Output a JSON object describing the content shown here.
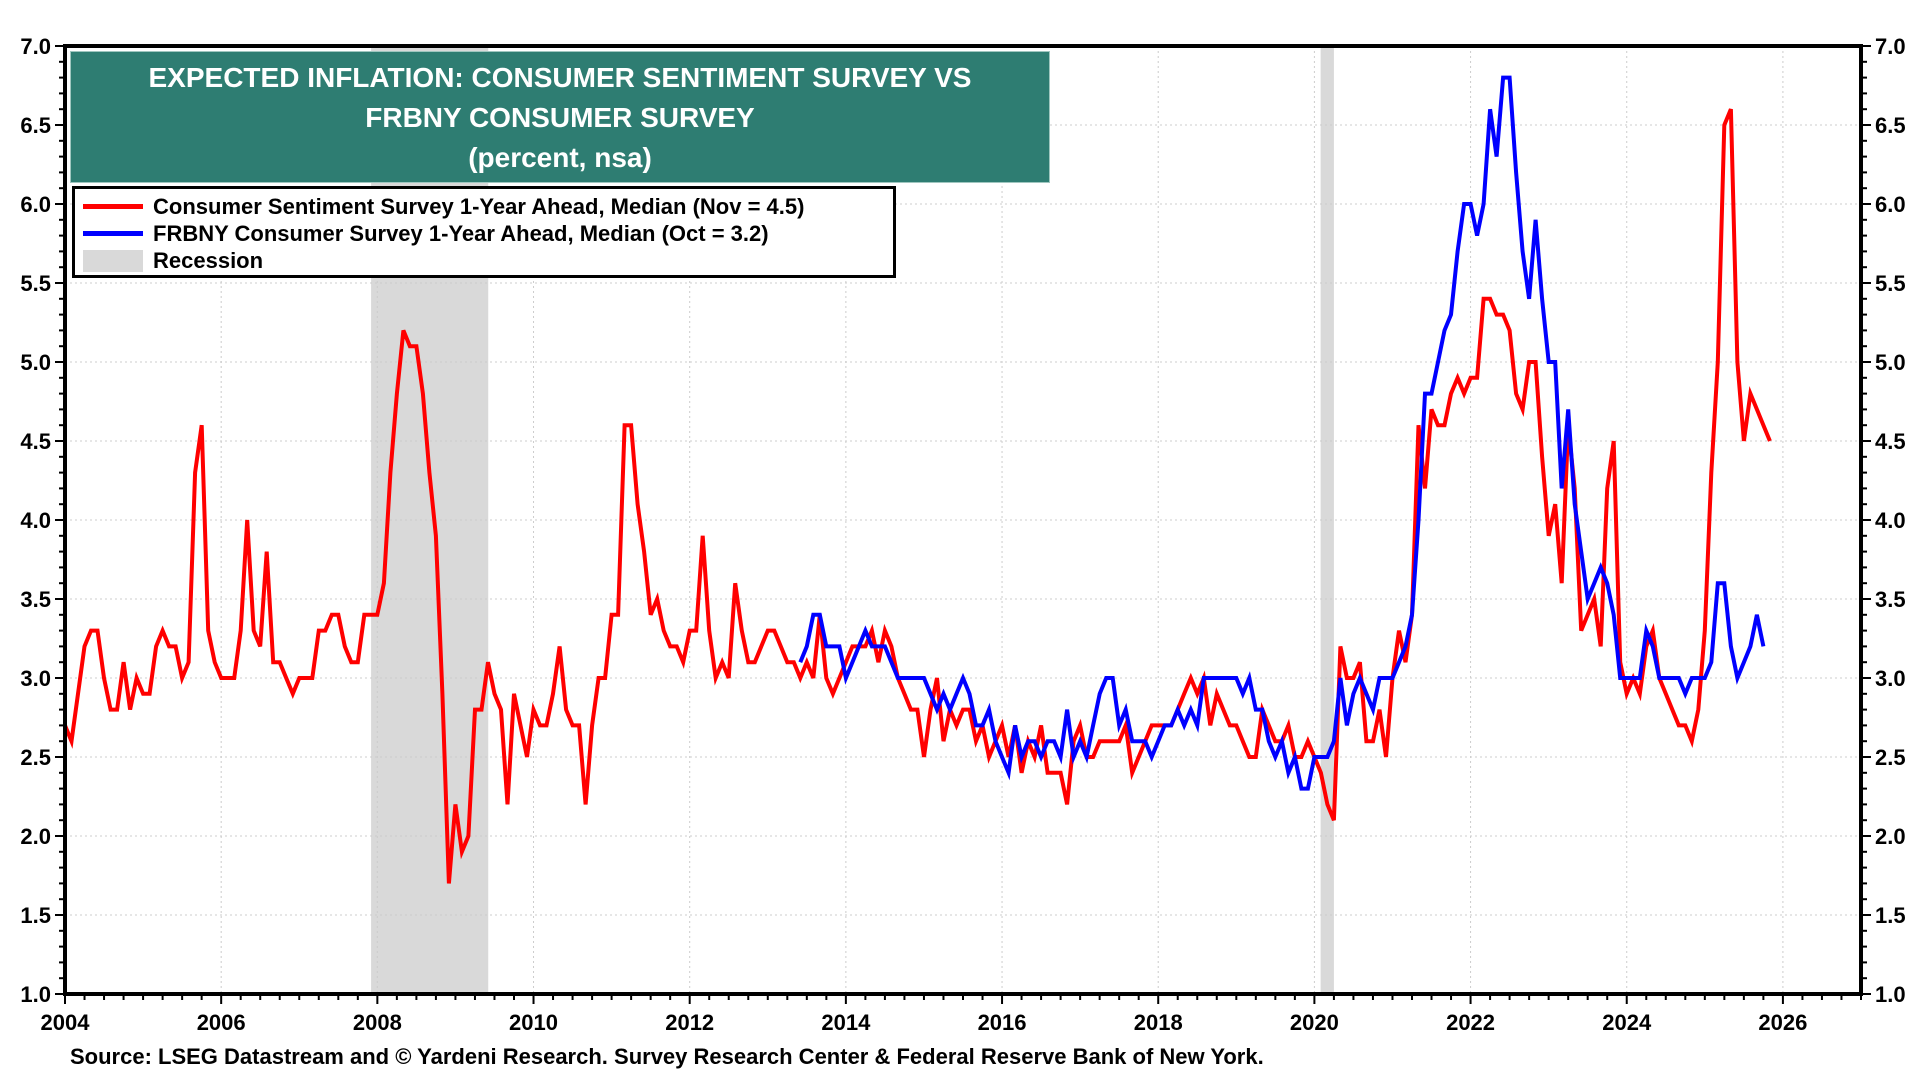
{
  "chart_data": {
    "type": "line",
    "title": "EXPECTED INFLATION: CONSUMER SENTIMENT SURVEY VS FRBNY CONSUMER SURVEY",
    "title_lines": [
      "EXPECTED INFLATION: CONSUMER SENTIMENT SURVEY VS",
      "FRBNY CONSUMER SURVEY"
    ],
    "subtitle": "(percent, nsa)",
    "xlabel": "",
    "ylabel": "",
    "xlim": [
      2004,
      2027
    ],
    "ylim": [
      1.0,
      7.0
    ],
    "x_ticks": [
      "2004",
      "2006",
      "2008",
      "2010",
      "2012",
      "2014",
      "2016",
      "2018",
      "2020",
      "2022",
      "2024",
      "2026"
    ],
    "y_ticks": [
      "1.0",
      "1.5",
      "2.0",
      "2.5",
      "3.0",
      "3.5",
      "4.0",
      "4.5",
      "5.0",
      "5.5",
      "6.0",
      "6.5",
      "7.0"
    ],
    "grid": true,
    "legend_position": "top-left",
    "frequency": "monthly",
    "series": [
      {
        "name": "Consumer Sentiment Survey 1-Year Ahead, Median (Nov = 4.5)",
        "color": "#ff0000",
        "start": "2004-01",
        "values": [
          2.7,
          2.6,
          2.9,
          3.2,
          3.3,
          3.3,
          3.0,
          2.8,
          2.8,
          3.1,
          2.8,
          3.0,
          2.9,
          2.9,
          3.2,
          3.3,
          3.2,
          3.2,
          3.0,
          3.1,
          4.3,
          4.6,
          3.3,
          3.1,
          3.0,
          3.0,
          3.0,
          3.3,
          4.0,
          3.3,
          3.2,
          3.8,
          3.1,
          3.1,
          3.0,
          2.9,
          3.0,
          3.0,
          3.0,
          3.3,
          3.3,
          3.4,
          3.4,
          3.2,
          3.1,
          3.1,
          3.4,
          3.4,
          3.4,
          3.6,
          4.3,
          4.8,
          5.2,
          5.1,
          5.1,
          4.8,
          4.3,
          3.9,
          2.9,
          1.7,
          2.2,
          1.9,
          2.0,
          2.8,
          2.8,
          3.1,
          2.9,
          2.8,
          2.2,
          2.9,
          2.7,
          2.5,
          2.8,
          2.7,
          2.7,
          2.9,
          3.2,
          2.8,
          2.7,
          2.7,
          2.2,
          2.7,
          3.0,
          3.0,
          3.4,
          3.4,
          4.6,
          4.6,
          4.1,
          3.8,
          3.4,
          3.5,
          3.3,
          3.2,
          3.2,
          3.1,
          3.3,
          3.3,
          3.9,
          3.3,
          3.0,
          3.1,
          3.0,
          3.6,
          3.3,
          3.1,
          3.1,
          3.2,
          3.3,
          3.3,
          3.2,
          3.1,
          3.1,
          3.0,
          3.1,
          3.0,
          3.4,
          3.0,
          2.9,
          3.0,
          3.1,
          3.2,
          3.2,
          3.2,
          3.3,
          3.1,
          3.3,
          3.2,
          3.0,
          2.9,
          2.8,
          2.8,
          2.5,
          2.8,
          3.0,
          2.6,
          2.8,
          2.7,
          2.8,
          2.8,
          2.6,
          2.7,
          2.5,
          2.6,
          2.7,
          2.5,
          2.7,
          2.4,
          2.6,
          2.5,
          2.7,
          2.4,
          2.4,
          2.4,
          2.2,
          2.6,
          2.7,
          2.5,
          2.5,
          2.6,
          2.6,
          2.6,
          2.6,
          2.7,
          2.4,
          2.5,
          2.6,
          2.7,
          2.7,
          2.7,
          2.7,
          2.8,
          2.9,
          3.0,
          2.9,
          3.0,
          2.7,
          2.9,
          2.8,
          2.7,
          2.7,
          2.6,
          2.5,
          2.5,
          2.8,
          2.7,
          2.6,
          2.6,
          2.7,
          2.5,
          2.5,
          2.6,
          2.5,
          2.4,
          2.2,
          2.1,
          3.2,
          3.0,
          3.0,
          3.1,
          2.6,
          2.6,
          2.8,
          2.5,
          3.0,
          3.3,
          3.1,
          3.4,
          4.6,
          4.2,
          4.7,
          4.6,
          4.6,
          4.8,
          4.9,
          4.8,
          4.9,
          4.9,
          5.4,
          5.4,
          5.3,
          5.3,
          5.2,
          4.8,
          4.7,
          5.0,
          5.0,
          4.4,
          3.9,
          4.1,
          3.6,
          4.6,
          4.2,
          3.3,
          3.4,
          3.5,
          3.2,
          4.2,
          4.5,
          3.1,
          2.9,
          3.0,
          2.9,
          3.2,
          3.3,
          3.0,
          2.9,
          2.8,
          2.7,
          2.7,
          2.6,
          2.8,
          3.3,
          4.3,
          5.0,
          6.5,
          6.6,
          5.0,
          4.5,
          4.8,
          4.7,
          4.6,
          4.5
        ]
      },
      {
        "name": "FRBNY Consumer Survey 1-Year Ahead, Median (Oct = 3.2)",
        "color": "#0000ff",
        "start": "2013-06",
        "values": [
          3.1,
          3.2,
          3.4,
          3.4,
          3.2,
          3.2,
          3.2,
          3.0,
          3.1,
          3.2,
          3.3,
          3.2,
          3.2,
          3.2,
          3.1,
          3.0,
          3.0,
          3.0,
          3.0,
          3.0,
          2.9,
          2.8,
          2.9,
          2.8,
          2.9,
          3.0,
          2.9,
          2.7,
          2.7,
          2.8,
          2.6,
          2.5,
          2.4,
          2.7,
          2.5,
          2.6,
          2.6,
          2.5,
          2.6,
          2.6,
          2.5,
          2.8,
          2.5,
          2.6,
          2.5,
          2.7,
          2.9,
          3.0,
          3.0,
          2.7,
          2.8,
          2.6,
          2.6,
          2.6,
          2.5,
          2.6,
          2.7,
          2.7,
          2.8,
          2.7,
          2.8,
          2.7,
          3.0,
          3.0,
          3.0,
          3.0,
          3.0,
          3.0,
          2.9,
          3.0,
          2.8,
          2.8,
          2.6,
          2.5,
          2.6,
          2.4,
          2.5,
          2.3,
          2.3,
          2.5,
          2.5,
          2.5,
          2.6,
          3.0,
          2.7,
          2.9,
          3.0,
          2.9,
          2.8,
          3.0,
          3.0,
          3.0,
          3.1,
          3.2,
          3.4,
          4.0,
          4.8,
          4.8,
          5.0,
          5.2,
          5.3,
          5.7,
          6.0,
          6.0,
          5.8,
          6.0,
          6.6,
          6.3,
          6.8,
          6.8,
          6.2,
          5.7,
          5.4,
          5.9,
          5.4,
          5.0,
          5.0,
          4.2,
          4.7,
          4.1,
          3.8,
          3.5,
          3.6,
          3.7,
          3.6,
          3.4,
          3.0,
          3.0,
          3.0,
          3.0,
          3.3,
          3.2,
          3.0,
          3.0,
          3.0,
          3.0,
          2.9,
          3.0,
          3.0,
          3.0,
          3.1,
          3.6,
          3.6,
          3.2,
          3.0,
          3.1,
          3.2,
          3.4,
          3.2
        ]
      }
    ],
    "recessions": [
      {
        "label": "Recession",
        "start": 2007.92,
        "end": 2009.42
      },
      {
        "label": "Recession",
        "start": 2020.08,
        "end": 2020.25
      }
    ],
    "legend": [
      {
        "label": "Consumer Sentiment Survey 1-Year Ahead, Median (Nov = 4.5)",
        "color": "#ff0000",
        "kind": "line"
      },
      {
        "label": "FRBNY Consumer Survey 1-Year Ahead, Median (Oct = 3.2)",
        "color": "#0000ff",
        "kind": "line"
      },
      {
        "label": "Recession",
        "color": "#d9d9d9",
        "kind": "box"
      }
    ],
    "source": "Source: LSEG Datastream and © Yardeni Research. Survey Research Center & Federal Reserve Bank of New York."
  },
  "colors": {
    "title_background": "#2e7d72",
    "recession": "#d9d9d9",
    "grid": "#cccccc"
  }
}
